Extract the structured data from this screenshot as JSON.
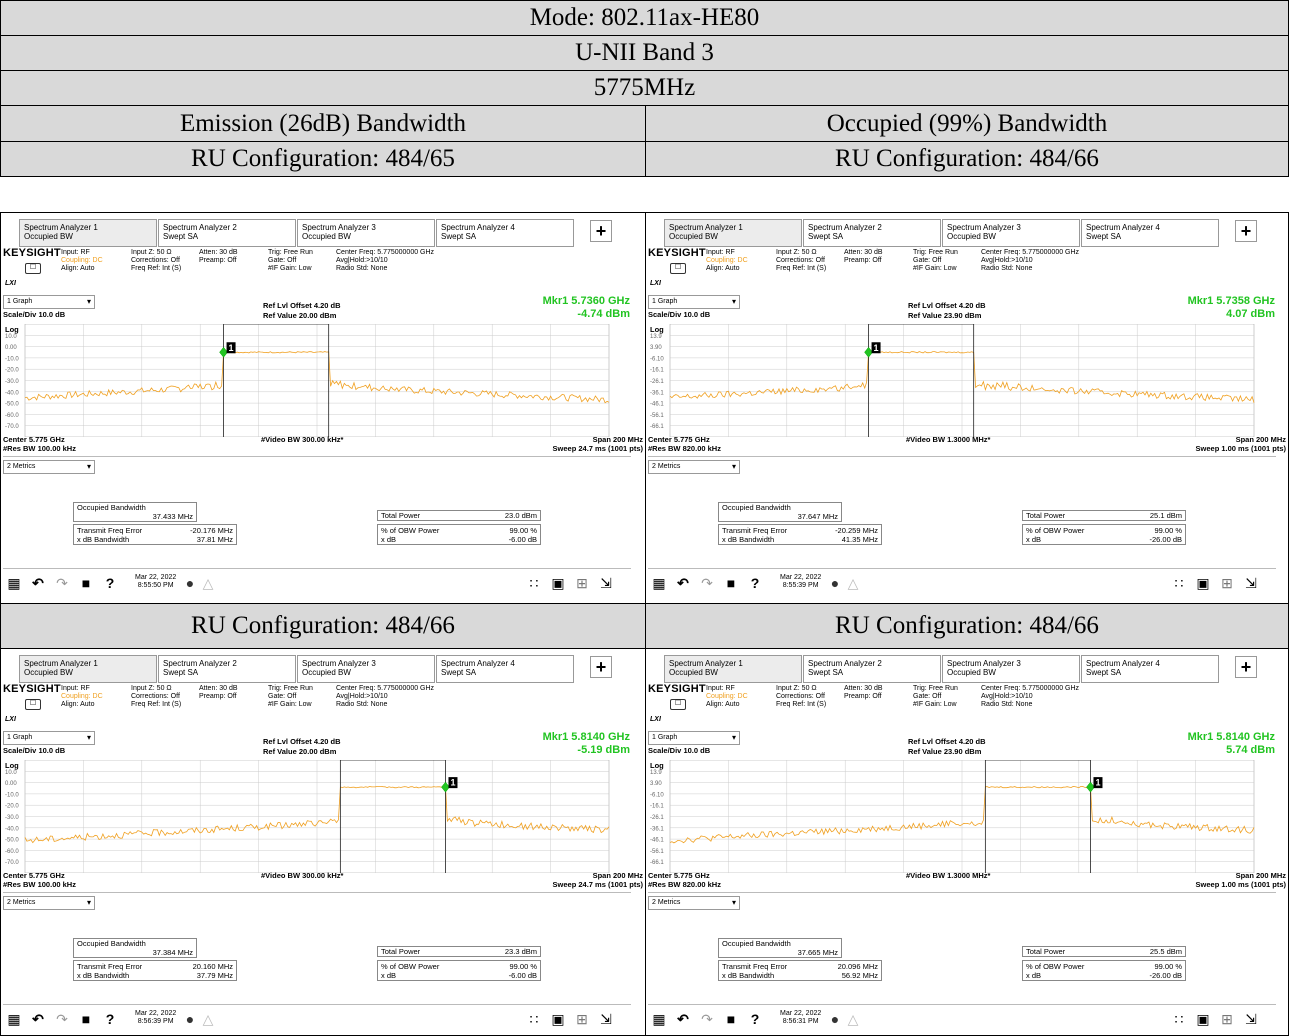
{
  "mode": "Mode: 802.11ax-HE80",
  "band": "U-NII Band 3",
  "frequency": "5775MHz",
  "col_headers": [
    "Emission (26dB) Bandwidth",
    "Occupied (99%) Bandwidth"
  ],
  "ru_labels": [
    "RU Configuration: 484/65",
    "RU Configuration: 484/66",
    "RU Configuration: 484/66",
    "RU Configuration: 484/66"
  ],
  "colors": {
    "header_bg": "#d9d9d9",
    "trace": "#f0a020",
    "marker": "#22c422"
  },
  "common": {
    "tabs": [
      {
        "l1": "Spectrum Analyzer 1",
        "l2": "Occupied BW"
      },
      {
        "l1": "Spectrum Analyzer 2",
        "l2": "Swept SA"
      },
      {
        "l1": "Spectrum Analyzer 3",
        "l2": "Occupied BW"
      },
      {
        "l1": "Spectrum Analyzer 4",
        "l2": "Swept SA"
      }
    ],
    "plus": "+",
    "brand": "KEYSIGHT",
    "lxi": "LXI",
    "input_rf": "Input: RF",
    "coupling": "Coupling: DC",
    "align": "Align: Auto",
    "input_z": "Input Z: 50 Ω",
    "corrections": "Corrections: Off",
    "freq_ref": "Freq Ref: Int (S)",
    "atten": "Atten: 30 dB",
    "preamp": "Preamp: Off",
    "trig": "Trig: Free Run",
    "gate": "Gate: Off",
    "if_gain": "#IF Gain: Low",
    "center_freq": "Center Freq: 5.775000000 GHz",
    "avg_hold": "Avg|Hold:>10/10",
    "radio_std": "Radio Std: None",
    "graph_dd": "1 Graph",
    "scale_div": "Scale/Div 10.0 dB",
    "log": "Log",
    "ref_offset": "Ref Lvl Offset 4.20 dB",
    "center": "Center 5.775 GHz",
    "span": "Span 200 MHz",
    "metrics_dd": "2 Metrics",
    "occ_bw_label": "Occupied Bandwidth",
    "tfe_label": "Transmit Freq Error",
    "xdb_bw_label": "x dB Bandwidth",
    "total_power_label": "Total Power",
    "obw_pct_label": "% of OBW Power",
    "xdb_label": "x dB",
    "obw_pct": "99.00 %"
  },
  "panels": [
    {
      "ref_value": "Ref Value 20.00 dBm",
      "yticks": [
        "10.0",
        "0.00",
        "-10.0",
        "-20.0",
        "-30.0",
        "-40.0",
        "-50.0",
        "-60.0",
        "-70.0"
      ],
      "mkr_freq": "Mkr1  5.7360 GHz",
      "mkr_level": "-4.74 dBm",
      "res_bw": "#Res BW 100.00 kHz",
      "video_bw": "#Video BW 300.00 kHz*",
      "sweep": "Sweep 24.7 ms (1001 pts)",
      "occ_bw": "37.433 MHz",
      "tfe": "-20.176 MHz",
      "xdb_bw": "37.81 MHz",
      "total_power": "23.0 dBm",
      "xdb": "-6.00 dB",
      "date": "Mar 22, 2022",
      "time": "8:55:50 PM",
      "marker_label": "1",
      "marker_side": "left",
      "offset_db": 0
    },
    {
      "ref_value": "Ref Value 23.90 dBm",
      "yticks": [
        "13.9",
        "3.90",
        "-6.10",
        "-16.1",
        "-26.1",
        "-36.1",
        "-46.1",
        "-56.1",
        "-66.1"
      ],
      "mkr_freq": "Mkr1  5.7358 GHz",
      "mkr_level": "4.07 dBm",
      "res_bw": "#Res BW 820.00 kHz",
      "video_bw": "#Video BW 1.3000 MHz*",
      "sweep": "Sweep 1.00 ms (1001 pts)",
      "occ_bw": "37.647 MHz",
      "tfe": "-20.259 MHz",
      "xdb_bw": "41.35 MHz",
      "total_power": "25.1 dBm",
      "xdb": "-26.00 dB",
      "date": "Mar 22, 2022",
      "time": "8:55:39 PM",
      "marker_label": "1",
      "marker_side": "left",
      "offset_db": 3.9
    },
    {
      "ref_value": "Ref Value 20.00 dBm",
      "yticks": [
        "10.0",
        "0.00",
        "-10.0",
        "-20.0",
        "-30.0",
        "-40.0",
        "-50.0",
        "-60.0",
        "-70.0"
      ],
      "mkr_freq": "Mkr1  5.8140 GHz",
      "mkr_level": "-5.19 dBm",
      "res_bw": "#Res BW 100.00 kHz",
      "video_bw": "#Video BW 300.00 kHz*",
      "sweep": "Sweep 24.7 ms (1001 pts)",
      "occ_bw": "37.384 MHz",
      "tfe": "20.160 MHz",
      "xdb_bw": "37.79 MHz",
      "total_power": "23.3 dBm",
      "xdb": "-6.00 dB",
      "date": "Mar 22, 2022",
      "time": "8:56:39 PM",
      "marker_label": "1",
      "marker_side": "right",
      "offset_db": 0
    },
    {
      "ref_value": "Ref Value 23.90 dBm",
      "yticks": [
        "13.9",
        "3.90",
        "-6.10",
        "-16.1",
        "-26.1",
        "-36.1",
        "-46.1",
        "-56.1",
        "-66.1"
      ],
      "mkr_freq": "Mkr1  5.8140 GHz",
      "mkr_level": "5.74 dBm",
      "res_bw": "#Res BW 820.00 kHz",
      "video_bw": "#Video BW 1.3000 MHz*",
      "sweep": "Sweep 1.00 ms (1001 pts)",
      "occ_bw": "37.665 MHz",
      "tfe": "20.096 MHz",
      "xdb_bw": "56.92 MHz",
      "total_power": "25.5 dBm",
      "xdb": "-26.00 dB",
      "date": "Mar 22, 2022",
      "time": "8:56:31 PM",
      "marker_label": "1",
      "marker_side": "right",
      "offset_db": 3.9
    }
  ]
}
